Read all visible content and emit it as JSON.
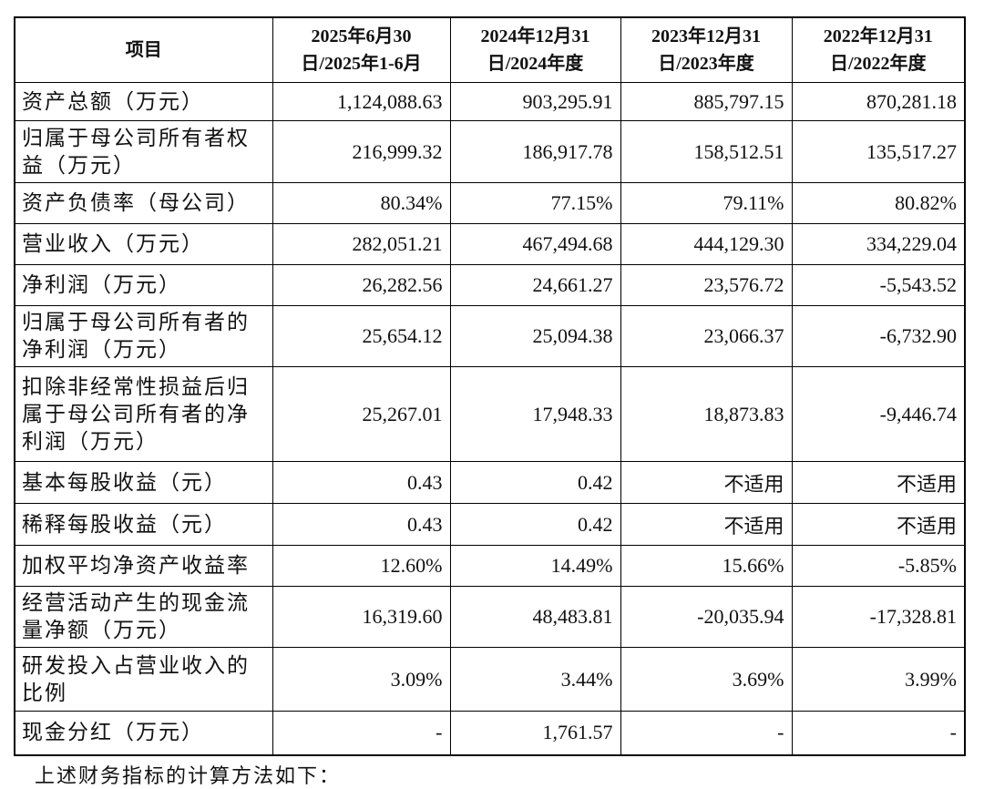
{
  "table": {
    "header": [
      [
        "项目"
      ],
      [
        "2025年6月30",
        "日/2025年1-6月"
      ],
      [
        "2024年12月31",
        "日/2024年度"
      ],
      [
        "2023年12月31",
        "日/2023年度"
      ],
      [
        "2022年12月31",
        "日/2022年度"
      ]
    ],
    "rows": [
      [
        "资产总额（万元）",
        "1,124,088.63",
        "903,295.91",
        "885,797.15",
        "870,281.18"
      ],
      [
        "归属于母公司所有者权益（万元）",
        "216,999.32",
        "186,917.78",
        "158,512.51",
        "135,517.27"
      ],
      [
        "资产负债率（母公司）",
        "80.34%",
        "77.15%",
        "79.11%",
        "80.82%"
      ],
      [
        "营业收入（万元）",
        "282,051.21",
        "467,494.68",
        "444,129.30",
        "334,229.04"
      ],
      [
        "净利润（万元）",
        "26,282.56",
        "24,661.27",
        "23,576.72",
        "-5,543.52"
      ],
      [
        "归属于母公司所有者的净利润（万元）",
        "25,654.12",
        "25,094.38",
        "23,066.37",
        "-6,732.90"
      ],
      [
        "扣除非经常性损益后归属于母公司所有者的净利润（万元）",
        "25,267.01",
        "17,948.33",
        "18,873.83",
        "-9,446.74"
      ],
      [
        "基本每股收益（元）",
        "0.43",
        "0.42",
        "不适用",
        "不适用"
      ],
      [
        "稀释每股收益（元）",
        "0.43",
        "0.42",
        "不适用",
        "不适用"
      ],
      [
        "加权平均净资产收益率",
        "12.60%",
        "14.49%",
        "15.66%",
        "-5.85%"
      ],
      [
        "经营活动产生的现金流量净额（万元）",
        "16,319.60",
        "48,483.81",
        "-20,035.94",
        "-17,328.81"
      ],
      [
        "研发投入占营业收入的比例",
        "3.09%",
        "3.44%",
        "3.69%",
        "3.99%"
      ],
      [
        "现金分红（万元）",
        "-",
        "1,761.57",
        "-",
        "-"
      ]
    ]
  },
  "note": "上述财务指标的计算方法如下："
}
